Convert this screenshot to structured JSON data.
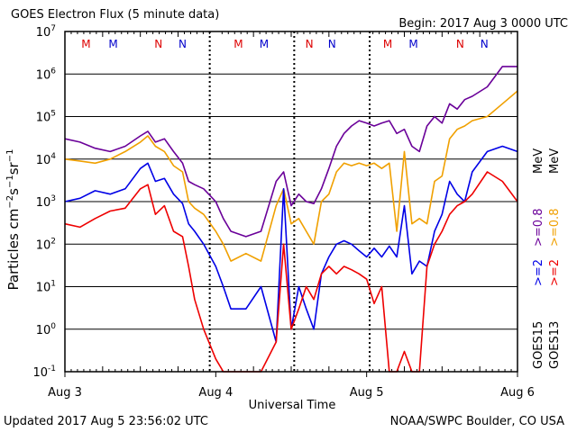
{
  "header": {
    "title": "GOES Electron Flux (5 minute data)",
    "begin": "Begin: 2017 Aug 3 0000 UTC"
  },
  "footer": {
    "updated": "Updated 2017 Aug  5 23:56:02 UTC",
    "credit": "NOAA/SWPC Boulder, CO USA"
  },
  "legend": {
    "g15": "GOES15",
    "g13": "GOES13",
    "s1": ">=2",
    "s2": ">=0.8",
    "s3": "MeV",
    "s4": ">=2",
    "s5": ">=0.8",
    "s6": "MeV"
  },
  "colors": {
    "goes15_ge2": "#0000e6",
    "goes15_ge08": "#6a0099",
    "goes13_ge2": "#ee0000",
    "goes13_ge08": "#f0a000",
    "noon_marker": "#dd0000",
    "night_marker": "#0000cc"
  },
  "chart_data": {
    "type": "line",
    "title": "GOES Electron Flux (5 minute data)",
    "xlabel": "Universal Time",
    "ylabel": "Particles cm⁻²s⁻¹sr⁻¹",
    "y_scale": "log",
    "ylim": [
      0.1,
      10000000
    ],
    "xlim_days": [
      0,
      3
    ],
    "x_tick_labels": [
      "Aug 3",
      "Aug 4",
      "Aug 5",
      "Aug 6"
    ],
    "y_tick_labels": [
      {
        "base": "10",
        "exp": "-1"
      },
      {
        "base": "10",
        "exp": "0"
      },
      {
        "base": "10",
        "exp": "1"
      },
      {
        "base": "10",
        "exp": "2"
      },
      {
        "base": "10",
        "exp": "3"
      },
      {
        "base": "10",
        "exp": "4"
      },
      {
        "base": "10",
        "exp": "5"
      },
      {
        "base": "10",
        "exp": "6"
      },
      {
        "base": "10",
        "exp": "7"
      }
    ],
    "threshold_line": 1000,
    "grid": true,
    "top_markers": [
      {
        "label": "M",
        "x": 0.14,
        "color": "#dd0000"
      },
      {
        "label": "M",
        "x": 0.32,
        "color": "#0000cc"
      },
      {
        "label": "N",
        "x": 0.62,
        "color": "#dd0000"
      },
      {
        "label": "N",
        "x": 0.78,
        "color": "#0000cc"
      },
      {
        "label": "M",
        "x": 1.15,
        "color": "#dd0000"
      },
      {
        "label": "M",
        "x": 1.32,
        "color": "#0000cc"
      },
      {
        "label": "N",
        "x": 1.62,
        "color": "#dd0000"
      },
      {
        "label": "N",
        "x": 1.77,
        "color": "#0000cc"
      },
      {
        "label": "M",
        "x": 2.14,
        "color": "#dd0000"
      },
      {
        "label": "M",
        "x": 2.31,
        "color": "#0000cc"
      },
      {
        "label": "N",
        "x": 2.62,
        "color": "#dd0000"
      },
      {
        "label": "N",
        "x": 2.78,
        "color": "#0000cc"
      }
    ],
    "dotted_markers_x": [
      0.96,
      1.52,
      2.02
    ],
    "series": [
      {
        "key": "goes15_ge08",
        "x": [
          0,
          0.1,
          0.2,
          0.3,
          0.4,
          0.5,
          0.55,
          0.6,
          0.66,
          0.72,
          0.78,
          0.82,
          0.86,
          0.92,
          1.0,
          1.05,
          1.1,
          1.2,
          1.3,
          1.4,
          1.45,
          1.5,
          1.55,
          1.6,
          1.65,
          1.7,
          1.75,
          1.8,
          1.85,
          1.9,
          1.95,
          2.0,
          2.05,
          2.1,
          2.15,
          2.2,
          2.25,
          2.3,
          2.35,
          2.4,
          2.45,
          2.5,
          2.55,
          2.6,
          2.65,
          2.7,
          2.8,
          2.9,
          3.0
        ],
        "y": [
          30000,
          25000,
          18000,
          15000,
          20000,
          35000,
          45000,
          25000,
          30000,
          15000,
          8000,
          3000,
          2500,
          2000,
          1000,
          400,
          200,
          150,
          200,
          3000,
          5000,
          800,
          1500,
          1000,
          900,
          2000,
          6000,
          20000,
          40000,
          60000,
          80000,
          70000,
          60000,
          70000,
          80000,
          40000,
          50000,
          20000,
          15000,
          60000,
          100000,
          70000,
          200000,
          150000,
          250000,
          300000,
          500000,
          1500000,
          1500000
        ]
      },
      {
        "key": "goes13_ge08",
        "x": [
          0,
          0.1,
          0.2,
          0.3,
          0.4,
          0.5,
          0.55,
          0.6,
          0.66,
          0.72,
          0.78,
          0.82,
          0.86,
          0.92,
          1.0,
          1.05,
          1.1,
          1.2,
          1.3,
          1.4,
          1.45,
          1.5,
          1.55,
          1.6,
          1.65,
          1.7,
          1.75,
          1.8,
          1.85,
          1.9,
          1.95,
          2.0,
          2.05,
          2.1,
          2.15,
          2.2,
          2.25,
          2.3,
          2.35,
          2.4,
          2.45,
          2.5,
          2.55,
          2.6,
          2.65,
          2.7,
          2.8,
          2.9,
          3.0
        ],
        "y": [
          10000,
          9000,
          8000,
          10000,
          15000,
          25000,
          35000,
          20000,
          15000,
          7000,
          5000,
          1000,
          700,
          500,
          200,
          100,
          40,
          60,
          40,
          800,
          2000,
          300,
          400,
          200,
          100,
          1000,
          1500,
          5000,
          8000,
          7000,
          8000,
          7000,
          8000,
          6000,
          8000,
          200,
          15000,
          300,
          400,
          300,
          3000,
          4000,
          30000,
          50000,
          60000,
          80000,
          100000,
          200000,
          400000
        ]
      },
      {
        "key": "goes15_ge2",
        "x": [
          0,
          0.1,
          0.2,
          0.3,
          0.4,
          0.5,
          0.55,
          0.6,
          0.66,
          0.72,
          0.78,
          0.82,
          0.86,
          0.92,
          1.0,
          1.05,
          1.1,
          1.2,
          1.3,
          1.4,
          1.45,
          1.5,
          1.55,
          1.6,
          1.65,
          1.7,
          1.75,
          1.8,
          1.85,
          1.9,
          1.95,
          2.0,
          2.05,
          2.1,
          2.15,
          2.2,
          2.25,
          2.3,
          2.35,
          2.4,
          2.45,
          2.5,
          2.55,
          2.6,
          2.65,
          2.7,
          2.8,
          2.9,
          3.0
        ],
        "y": [
          1000,
          1200,
          1800,
          1500,
          2000,
          6000,
          8000,
          3000,
          3500,
          1500,
          900,
          300,
          200,
          100,
          30,
          10,
          3,
          3,
          10,
          0.5,
          2000,
          1,
          10,
          3,
          1,
          20,
          50,
          100,
          120,
          100,
          70,
          50,
          80,
          50,
          90,
          50,
          800,
          20,
          40,
          30,
          200,
          500,
          3000,
          1500,
          1000,
          5000,
          15000,
          20000,
          15000
        ]
      },
      {
        "key": "goes13_ge2",
        "x": [
          0,
          0.1,
          0.2,
          0.3,
          0.4,
          0.5,
          0.55,
          0.6,
          0.66,
          0.72,
          0.78,
          0.82,
          0.86,
          0.92,
          1.0,
          1.05,
          1.1,
          1.2,
          1.3,
          1.4,
          1.45,
          1.5,
          1.55,
          1.6,
          1.65,
          1.7,
          1.75,
          1.8,
          1.85,
          1.9,
          1.95,
          2.0,
          2.05,
          2.1,
          2.15,
          2.2,
          2.25,
          2.3,
          2.35,
          2.4,
          2.45,
          2.5,
          2.55,
          2.6,
          2.65,
          2.7,
          2.8,
          2.9,
          3.0
        ],
        "y": [
          300,
          250,
          400,
          600,
          700,
          2000,
          2500,
          500,
          800,
          200,
          150,
          30,
          5,
          1,
          0.2,
          0.1,
          0.1,
          0.1,
          0.1,
          0.5,
          100,
          1,
          3,
          10,
          5,
          20,
          30,
          20,
          30,
          25,
          20,
          15,
          4,
          10,
          0.1,
          0.1,
          0.3,
          0.1,
          0.1,
          30,
          100,
          200,
          500,
          800,
          1000,
          1500,
          5000,
          3000,
          1000
        ]
      }
    ]
  }
}
